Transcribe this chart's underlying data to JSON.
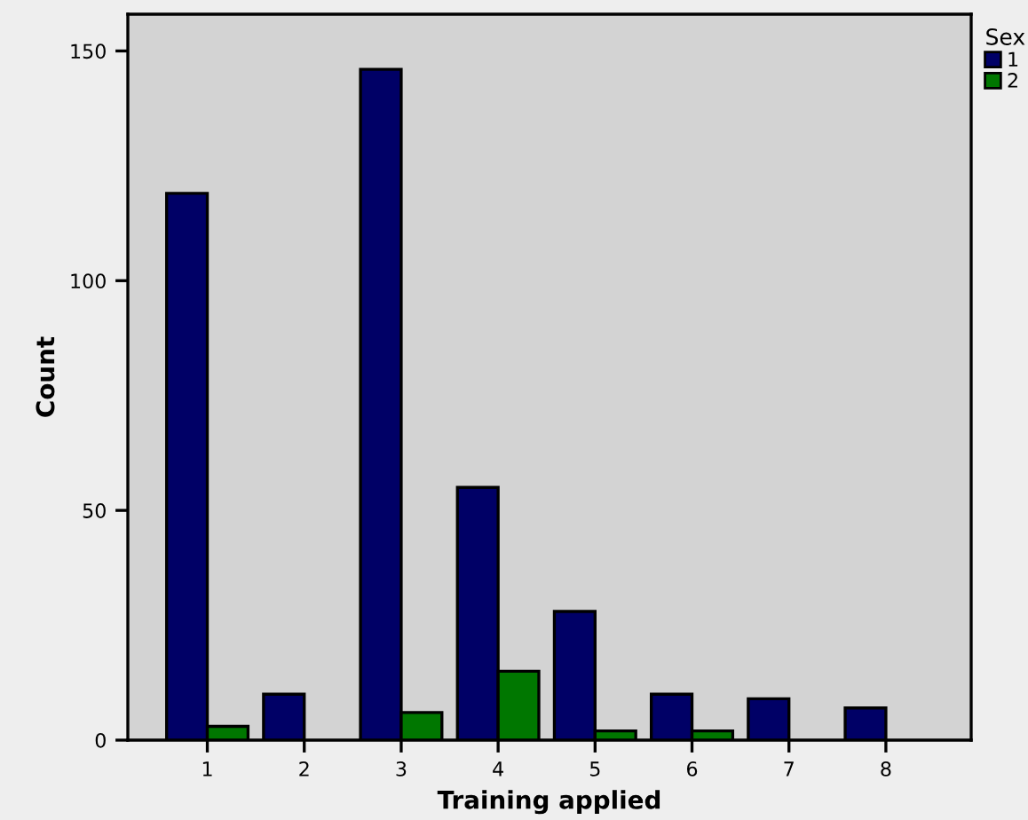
{
  "chart_data": {
    "type": "bar",
    "xlabel": "Training applied",
    "ylabel": "Count",
    "legend_title": "Sex",
    "categories": [
      "1",
      "2",
      "3",
      "4",
      "5",
      "6",
      "7",
      "8"
    ],
    "series": [
      {
        "name": "1",
        "color": "#000066",
        "values": [
          119,
          10,
          146,
          55,
          28,
          10,
          9,
          7
        ]
      },
      {
        "name": "2",
        "color": "#007700",
        "values": [
          3,
          null,
          6,
          15,
          2,
          2,
          null,
          null
        ]
      }
    ],
    "ylim": [
      0,
      158
    ],
    "yticks": [
      0,
      50,
      100,
      150
    ],
    "grid": false,
    "legend": "top right"
  }
}
